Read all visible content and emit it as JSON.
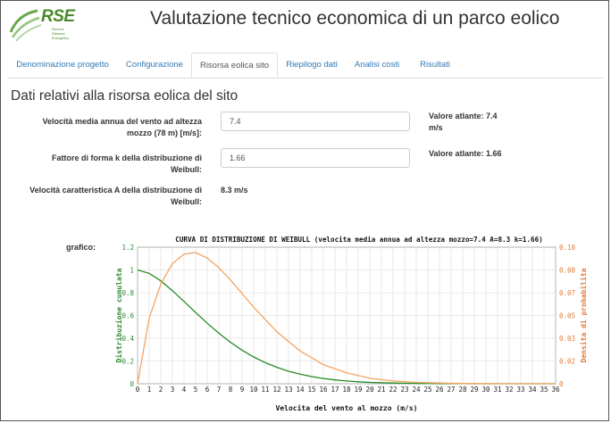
{
  "logo": {
    "text": "RSE",
    "sub": [
      "Ricerca",
      "Sistema",
      "Energetico"
    ]
  },
  "title": "Valutazione tecnico economica di un parco eolico",
  "tabs": [
    {
      "label": "Denominazione progetto"
    },
    {
      "label": "Configurazione"
    },
    {
      "label": "Risorsa eolica sito"
    },
    {
      "label": "Riepilogo dati"
    },
    {
      "label": "Analisi costi"
    },
    {
      "label": "Risultati"
    }
  ],
  "active_tab": "Risorsa eolica sito",
  "section_title": "Dati relativi alla risorsa eolica del sito",
  "fields": {
    "speed_label_1": "Velocità media annua del vento ad altezza",
    "speed_label_2": "mozzo (78 m) [m/s]:",
    "speed_value": "7.4",
    "speed_atlas_1": "Valore atlante: 7.4",
    "speed_atlas_2": "m/s",
    "shape_label_1": "Fattore di forma k della distribuzione di",
    "shape_label_2": "Weibull:",
    "shape_value": "1.66",
    "shape_atlas": "Valore atlante: 1.66",
    "scale_label_1": "Velocità caratteristica A della distribuzione di",
    "scale_label_2": "Weibull:",
    "scale_value": "8.3 m/s"
  },
  "chart_label": "grafico:",
  "chart_data": {
    "type": "line",
    "title": "CURVA DI DISTRIBUZIONE DI WEIBULL  (velocita media annua ad altezza mozzo=7.4  A=8.3  k=1.66)",
    "xlabel": "Velocita del vento al mozzo (m/s)",
    "ylabel": "Distribuzione cumulata",
    "y2label": "Densita di probabilita",
    "xlim": [
      0,
      36
    ],
    "ylim": [
      0,
      1.2
    ],
    "y2lim": [
      0,
      0.1
    ],
    "xticks": [
      "0",
      "1",
      "2",
      "3",
      "4",
      "5",
      "6",
      "7",
      "8",
      "9",
      "10",
      "11",
      "12",
      "13",
      "14",
      "15",
      "16",
      "17",
      "18",
      "19",
      "20",
      "21",
      "22",
      "23",
      "24",
      "25",
      "26",
      "27",
      "28",
      "29",
      "30",
      "31",
      "32",
      "33",
      "34",
      "35",
      "36"
    ],
    "yticks": [
      "0",
      "0.2",
      "0.4",
      "0.6",
      "0.8",
      "1",
      "1.2"
    ],
    "y2ticks": [
      "0",
      "0.02",
      "0.03",
      "0.05",
      "0.07",
      "0.08",
      "0.10"
    ],
    "grid": true,
    "x": [
      0,
      1,
      2,
      3,
      4,
      5,
      6,
      7,
      8,
      9,
      10,
      11,
      12,
      13,
      14,
      15,
      16,
      17,
      18,
      19,
      20,
      21,
      22,
      23,
      24,
      25,
      26,
      27,
      28,
      29,
      30,
      31,
      32,
      33,
      34,
      35,
      36
    ],
    "series": [
      {
        "name": "Distribuzione cumulata",
        "axis": "left",
        "color": "#228b22",
        "values": [
          1.0,
          0.97,
          0.904,
          0.818,
          0.723,
          0.626,
          0.532,
          0.444,
          0.365,
          0.295,
          0.235,
          0.185,
          0.144,
          0.11,
          0.084,
          0.063,
          0.046,
          0.034,
          0.024,
          0.017,
          0.012,
          0.009,
          0.006,
          0.004,
          0.003,
          0.002,
          0.001,
          0.001,
          0.0005,
          0.0003,
          0.0002,
          0.0001,
          0.0001,
          0.0,
          0.0,
          0.0,
          0.0
        ]
      },
      {
        "name": "Densita di probabilita",
        "axis": "right",
        "color": "#f4a460",
        "values": [
          0.0,
          0.048,
          0.073,
          0.088,
          0.095,
          0.096,
          0.092,
          0.085,
          0.076,
          0.066,
          0.056,
          0.047,
          0.038,
          0.031,
          0.024,
          0.019,
          0.014,
          0.011,
          0.008,
          0.006,
          0.004,
          0.003,
          0.002,
          0.0015,
          0.001,
          0.0007,
          0.0005,
          0.0003,
          0.0002,
          0.0001,
          0.0001,
          0.0,
          0.0,
          0.0,
          0.0,
          0.0,
          0.0
        ]
      }
    ]
  }
}
